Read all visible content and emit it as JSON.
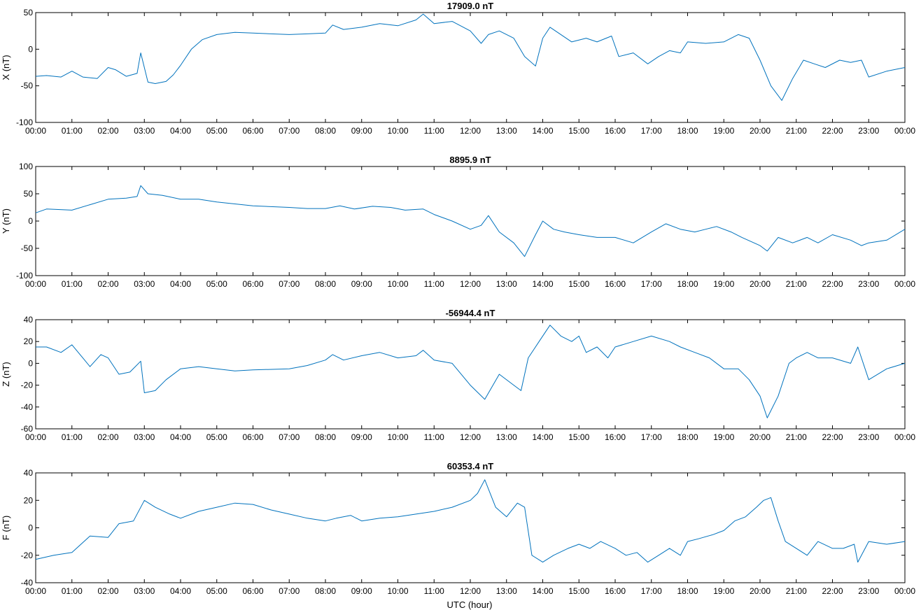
{
  "figure": {
    "xlabel": "UTC (hour)",
    "line_color": "#0072BD"
  },
  "chart_data": [
    {
      "type": "line",
      "title": "17909.0 nT",
      "ylabel": "X (nT)",
      "xlabel": "",
      "xlim": [
        0,
        24
      ],
      "ylim": [
        -100,
        50
      ],
      "yticks": [
        50,
        0,
        -50,
        -100
      ],
      "xticks": [
        0,
        1,
        2,
        3,
        4,
        5,
        6,
        7,
        8,
        9,
        10,
        11,
        12,
        13,
        14,
        15,
        16,
        17,
        18,
        19,
        20,
        21,
        22,
        23,
        24
      ],
      "xtick_labels": [
        "00:00",
        "01:00",
        "02:00",
        "03:00",
        "04:00",
        "05:00",
        "06:00",
        "07:00",
        "08:00",
        "09:00",
        "10:00",
        "11:00",
        "12:00",
        "13:00",
        "14:00",
        "15:00",
        "16:00",
        "17:00",
        "18:00",
        "19:00",
        "20:00",
        "21:00",
        "22:00",
        "23:00",
        "00:00"
      ],
      "grid": false,
      "series": [
        {
          "x": [
            0,
            0.3,
            0.7,
            1.0,
            1.3,
            1.7,
            2.0,
            2.2,
            2.5,
            2.8,
            2.9,
            3.1,
            3.3,
            3.6,
            3.8,
            4.0,
            4.3,
            4.6,
            5.0,
            5.5,
            6.0,
            6.5,
            7.0,
            7.5,
            8.0,
            8.2,
            8.5,
            9.0,
            9.5,
            10.0,
            10.5,
            10.7,
            11.0,
            11.5,
            12.0,
            12.3,
            12.5,
            12.8,
            13.2,
            13.5,
            13.8,
            14.0,
            14.2,
            14.5,
            14.8,
            15.2,
            15.5,
            15.9,
            16.1,
            16.5,
            16.9,
            17.2,
            17.5,
            17.8,
            18.0,
            18.5,
            19.0,
            19.4,
            19.7,
            20.0,
            20.3,
            20.6,
            20.9,
            21.2,
            21.5,
            21.8,
            22.2,
            22.5,
            22.8,
            23.0,
            23.5,
            24.0
          ],
          "y": [
            -37,
            -36,
            -38,
            -30,
            -38,
            -40,
            -25,
            -28,
            -37,
            -33,
            -5,
            -45,
            -47,
            -44,
            -35,
            -22,
            0,
            13,
            20,
            23,
            22,
            21,
            20,
            21,
            22,
            33,
            27,
            30,
            35,
            32,
            40,
            48,
            35,
            38,
            25,
            8,
            20,
            25,
            15,
            -10,
            -23,
            15,
            30,
            20,
            10,
            15,
            10,
            18,
            -10,
            -5,
            -20,
            -10,
            -2,
            -5,
            10,
            8,
            10,
            20,
            15,
            -15,
            -50,
            -70,
            -40,
            -15,
            -20,
            -25,
            -15,
            -18,
            -15,
            -38,
            -30,
            -25
          ]
        }
      ]
    },
    {
      "type": "line",
      "title": "8895.9 nT",
      "ylabel": "Y (nT)",
      "xlabel": "",
      "xlim": [
        0,
        24
      ],
      "ylim": [
        -100,
        100
      ],
      "yticks": [
        100,
        50,
        0,
        -50,
        -100
      ],
      "xticks": [
        0,
        1,
        2,
        3,
        4,
        5,
        6,
        7,
        8,
        9,
        10,
        11,
        12,
        13,
        14,
        15,
        16,
        17,
        18,
        19,
        20,
        21,
        22,
        23,
        24
      ],
      "xtick_labels": [
        "00:00",
        "01:00",
        "02:00",
        "03:00",
        "04:00",
        "05:00",
        "06:00",
        "07:00",
        "08:00",
        "09:00",
        "10:00",
        "11:00",
        "12:00",
        "13:00",
        "14:00",
        "15:00",
        "16:00",
        "17:00",
        "18:00",
        "19:00",
        "20:00",
        "21:00",
        "22:00",
        "23:00",
        "00:00"
      ],
      "grid": false,
      "series": [
        {
          "x": [
            0,
            0.3,
            1.0,
            1.5,
            2.0,
            2.5,
            2.8,
            2.9,
            3.1,
            3.5,
            4.0,
            4.5,
            5.0,
            6.0,
            7.0,
            7.5,
            8.0,
            8.4,
            8.8,
            9.3,
            9.8,
            10.2,
            10.7,
            11.0,
            11.5,
            12.0,
            12.3,
            12.5,
            12.8,
            13.2,
            13.5,
            13.8,
            14.0,
            14.3,
            14.6,
            15.0,
            15.5,
            16.0,
            16.5,
            17.0,
            17.4,
            17.8,
            18.2,
            18.5,
            18.8,
            19.2,
            19.5,
            20.0,
            20.2,
            20.5,
            20.9,
            21.3,
            21.6,
            22.0,
            22.5,
            22.8,
            23.0,
            23.5,
            24.0
          ],
          "y": [
            15,
            22,
            20,
            30,
            40,
            42,
            45,
            65,
            50,
            47,
            40,
            40,
            35,
            28,
            25,
            23,
            23,
            28,
            22,
            27,
            25,
            20,
            22,
            12,
            0,
            -15,
            -8,
            10,
            -20,
            -40,
            -65,
            -25,
            0,
            -15,
            -20,
            -25,
            -30,
            -30,
            -40,
            -20,
            -5,
            -15,
            -20,
            -15,
            -10,
            -20,
            -30,
            -45,
            -55,
            -30,
            -40,
            -30,
            -40,
            -25,
            -35,
            -45,
            -40,
            -35,
            -15
          ]
        }
      ]
    },
    {
      "type": "line",
      "title": "-56944.4 nT",
      "ylabel": "Z (nT)",
      "xlabel": "",
      "xlim": [
        0,
        24
      ],
      "ylim": [
        -60,
        40
      ],
      "yticks": [
        40,
        20,
        0,
        -20,
        -40,
        -60
      ],
      "xticks": [
        0,
        1,
        2,
        3,
        4,
        5,
        6,
        7,
        8,
        9,
        10,
        11,
        12,
        13,
        14,
        15,
        16,
        17,
        18,
        19,
        20,
        21,
        22,
        23,
        24
      ],
      "xtick_labels": [
        "00:00",
        "01:00",
        "02:00",
        "03:00",
        "04:00",
        "05:00",
        "06:00",
        "07:00",
        "08:00",
        "09:00",
        "10:00",
        "11:00",
        "12:00",
        "13:00",
        "14:00",
        "15:00",
        "16:00",
        "17:00",
        "18:00",
        "19:00",
        "20:00",
        "21:00",
        "22:00",
        "23:00",
        "00:00"
      ],
      "grid": false,
      "series": [
        {
          "x": [
            0,
            0.3,
            0.7,
            1.0,
            1.3,
            1.5,
            1.8,
            2.0,
            2.3,
            2.6,
            2.9,
            3.0,
            3.3,
            3.6,
            4.0,
            4.5,
            5.0,
            5.5,
            6.0,
            7.0,
            7.5,
            8.0,
            8.2,
            8.5,
            9.0,
            9.5,
            10.0,
            10.5,
            10.7,
            11.0,
            11.5,
            12.0,
            12.4,
            12.8,
            13.2,
            13.4,
            13.6,
            13.9,
            14.2,
            14.5,
            14.8,
            15.0,
            15.2,
            15.5,
            15.8,
            16.0,
            16.5,
            17.0,
            17.5,
            17.8,
            18.2,
            18.6,
            19.0,
            19.4,
            19.7,
            20.0,
            20.2,
            20.5,
            20.8,
            21.0,
            21.3,
            21.6,
            22.0,
            22.5,
            22.7,
            23.0,
            23.5,
            24.0
          ],
          "y": [
            15,
            15,
            10,
            17,
            5,
            -3,
            8,
            5,
            -10,
            -8,
            2,
            -27,
            -25,
            -15,
            -5,
            -3,
            -5,
            -7,
            -6,
            -5,
            -2,
            3,
            8,
            3,
            7,
            10,
            5,
            7,
            12,
            3,
            0,
            -20,
            -33,
            -10,
            -20,
            -25,
            5,
            20,
            35,
            25,
            20,
            25,
            10,
            15,
            5,
            15,
            20,
            25,
            20,
            15,
            10,
            5,
            -5,
            -5,
            -15,
            -30,
            -50,
            -30,
            0,
            5,
            10,
            5,
            5,
            0,
            15,
            -15,
            -5,
            0
          ]
        }
      ]
    },
    {
      "type": "line",
      "title": "60353.4 nT",
      "ylabel": "F (nT)",
      "xlabel": "UTC (hour)",
      "xlim": [
        0,
        24
      ],
      "ylim": [
        -40,
        40
      ],
      "yticks": [
        40,
        20,
        0,
        -20,
        -40
      ],
      "xticks": [
        0,
        1,
        2,
        3,
        4,
        5,
        6,
        7,
        8,
        9,
        10,
        11,
        12,
        13,
        14,
        15,
        16,
        17,
        18,
        19,
        20,
        21,
        22,
        23,
        24
      ],
      "xtick_labels": [
        "00:00",
        "01:00",
        "02:00",
        "03:00",
        "04:00",
        "05:00",
        "06:00",
        "07:00",
        "08:00",
        "09:00",
        "10:00",
        "11:00",
        "12:00",
        "13:00",
        "14:00",
        "15:00",
        "16:00",
        "17:00",
        "18:00",
        "19:00",
        "20:00",
        "21:00",
        "22:00",
        "23:00",
        "00:00"
      ],
      "grid": false,
      "series": [
        {
          "x": [
            0,
            0.5,
            1.0,
            1.5,
            2.0,
            2.3,
            2.7,
            3.0,
            3.3,
            3.7,
            4.0,
            4.5,
            5.0,
            5.5,
            6.0,
            6.5,
            7.0,
            7.5,
            8.0,
            8.3,
            8.7,
            9.0,
            9.5,
            10.0,
            10.5,
            11.0,
            11.5,
            12.0,
            12.2,
            12.4,
            12.7,
            13.0,
            13.3,
            13.5,
            13.7,
            14.0,
            14.3,
            14.7,
            15.0,
            15.3,
            15.6,
            16.0,
            16.3,
            16.6,
            16.9,
            17.2,
            17.5,
            17.8,
            18.0,
            18.3,
            18.7,
            19.0,
            19.3,
            19.6,
            19.9,
            20.1,
            20.3,
            20.5,
            20.7,
            21.0,
            21.3,
            21.6,
            22.0,
            22.3,
            22.6,
            22.7,
            23.0,
            23.5,
            24.0
          ],
          "y": [
            -23,
            -20,
            -18,
            -6,
            -7,
            3,
            5,
            20,
            15,
            10,
            7,
            12,
            15,
            18,
            17,
            13,
            10,
            7,
            5,
            7,
            9,
            5,
            7,
            8,
            10,
            12,
            15,
            20,
            25,
            35,
            15,
            8,
            18,
            15,
            -20,
            -25,
            -20,
            -15,
            -12,
            -15,
            -10,
            -15,
            -20,
            -18,
            -25,
            -20,
            -15,
            -20,
            -10,
            -8,
            -5,
            -2,
            5,
            8,
            15,
            20,
            22,
            5,
            -10,
            -15,
            -20,
            -10,
            -15,
            -15,
            -12,
            -25,
            -10,
            -12,
            -10
          ]
        }
      ]
    }
  ]
}
